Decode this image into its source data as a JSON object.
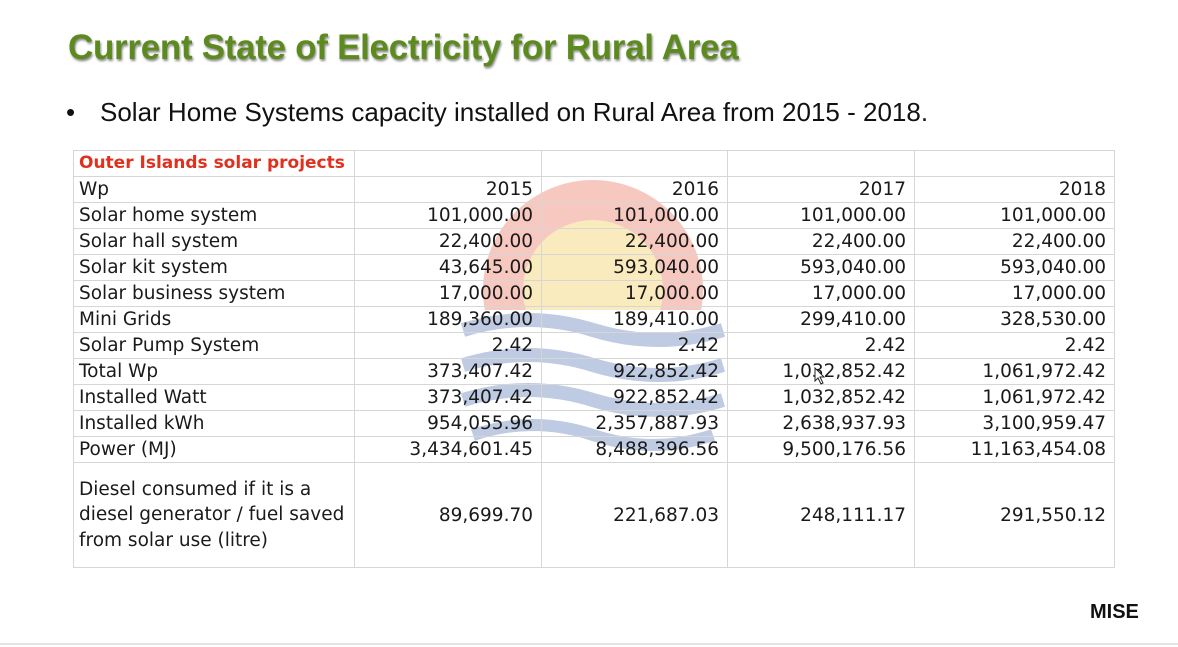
{
  "slide": {
    "title": "Current State of Electricity for Rural Area",
    "bullet_marker": "•",
    "bullet_text": "Solar Home Systems capacity installed on Rural Area from 2015 - 2018.",
    "brand": "MISE"
  },
  "table": {
    "title": "Outer Islands solar projects",
    "header": {
      "label": "Wp",
      "years": [
        "2015",
        "2016",
        "2017",
        "2018"
      ]
    },
    "rows": [
      {
        "label": "Solar home system",
        "values": [
          "101,000.00",
          "101,000.00",
          "101,000.00",
          "101,000.00"
        ]
      },
      {
        "label": "Solar hall system",
        "values": [
          "22,400.00",
          "22,400.00",
          "22,400.00",
          "22,400.00"
        ]
      },
      {
        "label": "Solar kit system",
        "values": [
          "43,645.00",
          "593,040.00",
          "593,040.00",
          "593,040.00"
        ]
      },
      {
        "label": "Solar business system",
        "values": [
          "17,000.00",
          "17,000.00",
          "17,000.00",
          "17,000.00"
        ]
      },
      {
        "label": "Mini Grids",
        "values": [
          "189,360.00",
          "189,410.00",
          "299,410.00",
          "328,530.00"
        ]
      },
      {
        "label": "Solar Pump System",
        "values": [
          "2.42",
          "2.42",
          "2.42",
          "2.42"
        ]
      },
      {
        "label": "Total Wp",
        "values": [
          "373,407.42",
          "922,852.42",
          "1,032,852.42",
          "1,061,972.42"
        ]
      },
      {
        "label": "Installed Watt",
        "values": [
          "373,407.42",
          "922,852.42",
          "1,032,852.42",
          "1,061,972.42"
        ]
      },
      {
        "label": "Installed kWh",
        "values": [
          "954,055.96",
          "2,357,887.93",
          "2,638,937.93",
          "3,100,959.47"
        ]
      },
      {
        "label": "Power (MJ)",
        "values": [
          "3,434,601.45",
          "8,488,396.56",
          "9,500,176.56",
          "11,163,454.08"
        ]
      },
      {
        "label": "Diesel consumed if it is a diesel generator / fuel saved from solar use (litre)",
        "values": [
          "89,699.70",
          "221,687.03",
          "248,111.17",
          "291,550.12"
        ]
      }
    ]
  },
  "colors": {
    "title_green": "#5c8a1e",
    "table_title_red": "#e0301e",
    "watermark_red": "#e8563a",
    "watermark_yellow": "#f2c43a",
    "watermark_blue": "#3a5fa8"
  }
}
